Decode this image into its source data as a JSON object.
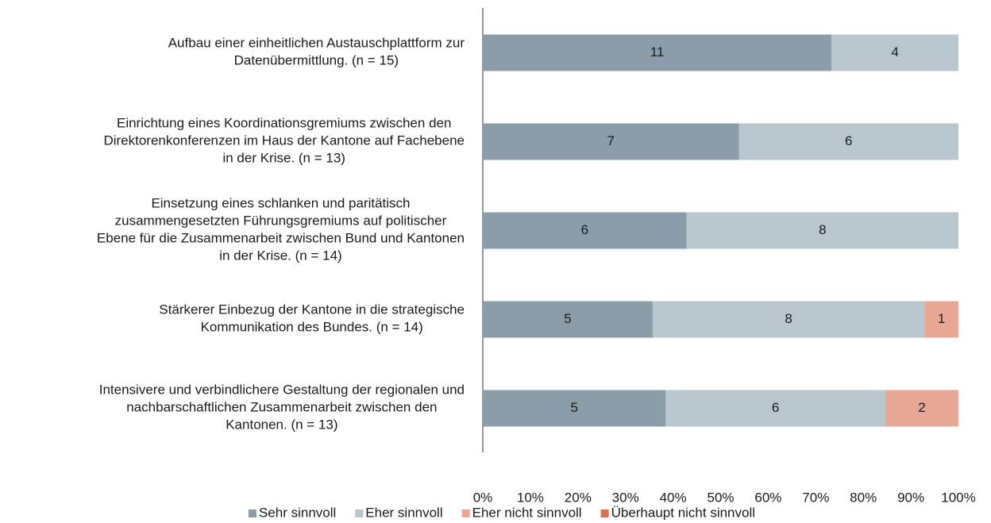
{
  "chart_data": {
    "type": "bar",
    "orientation": "horizontal",
    "stacked": "percent",
    "categories": [
      "Aufbau einer einheitlichen Austauschplattform zur\nDatenübermittlung. (n = 15)",
      "Einrichtung eines Koordinationsgremiums zwischen den\nDirektorenkonferenzen im Haus der Kantone auf Fachebene\nin der Krise. (n = 13)",
      "Einsetzung eines schlanken und paritätisch\nzusammengesetzten Führungsgremiums auf politischer\nEbene für die Zusammenarbeit zwischen Bund und Kantonen\nin der Krise. (n = 14)",
      "Stärkerer Einbezug der Kantone in die strategische\nKommunikation des Bundes. (n = 14)",
      "Intensivere und verbindlichere Gestaltung der regionalen und\nnachbarschaftlichen Zusammenarbeit zwischen den\nKantonen. (n = 13)"
    ],
    "series": [
      {
        "name": "Sehr sinnvoll",
        "color": "#8b9da8",
        "values": [
          11,
          7,
          6,
          5,
          5
        ]
      },
      {
        "name": "Eher sinnvoll",
        "color": "#b9c6cc",
        "values": [
          4,
          6,
          8,
          8,
          6
        ]
      },
      {
        "name": "Eher nicht sinnvoll",
        "color": "#e8a795",
        "values": [
          null,
          null,
          null,
          1,
          2
        ]
      },
      {
        "name": "Überhaupt nicht sinnvoll",
        "color": "#d9704f",
        "values": [
          null,
          null,
          null,
          null,
          null
        ]
      }
    ],
    "xlim": [
      0,
      100
    ],
    "xticks": [
      {
        "value": 0,
        "label": "0%"
      },
      {
        "value": 10,
        "label": "10%"
      },
      {
        "value": 20,
        "label": "20%"
      },
      {
        "value": 30,
        "label": "30%"
      },
      {
        "value": 40,
        "label": "40%"
      },
      {
        "value": 50,
        "label": "50%"
      },
      {
        "value": 60,
        "label": "60%"
      },
      {
        "value": 70,
        "label": "70%"
      },
      {
        "value": 80,
        "label": "80%"
      },
      {
        "value": 90,
        "label": "90%"
      },
      {
        "value": 100,
        "label": "100%"
      }
    ],
    "legend": "bottom"
  }
}
